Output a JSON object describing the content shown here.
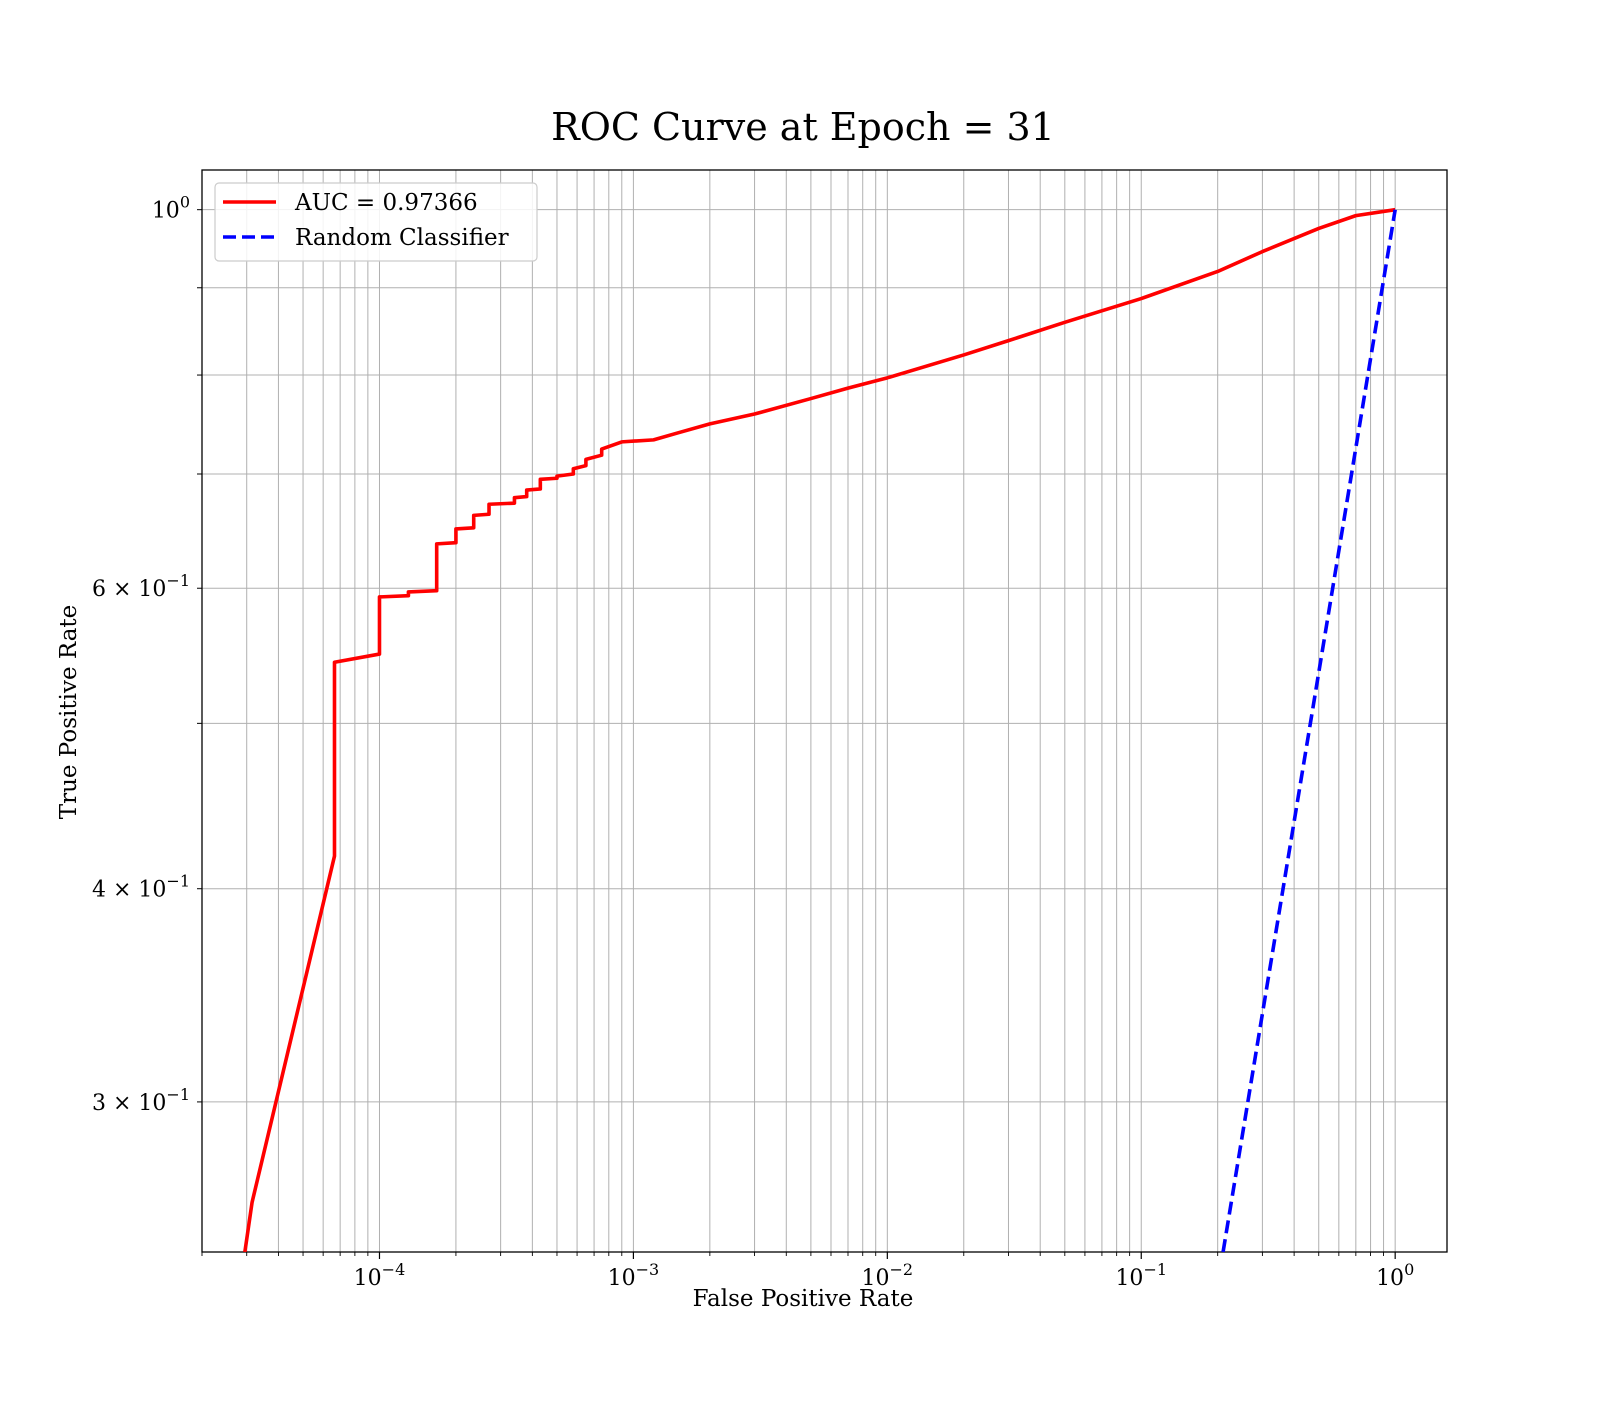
{
  "chart_data": {
    "type": "line",
    "title": "ROC Curve at Epoch = 31",
    "xlabel": "False Positive Rate",
    "ylabel": "True Positive Rate",
    "xscale": "log",
    "yscale": "log",
    "xlim": [
      2e-05,
      1.6
    ],
    "ylim": [
      0.245,
      1.055
    ],
    "grid": true,
    "legend_position": "upper-left",
    "x_ticks": [
      {
        "value": 0.0001,
        "base": "10",
        "exp": "−4"
      },
      {
        "value": 0.001,
        "base": "10",
        "exp": "−3"
      },
      {
        "value": 0.01,
        "base": "10",
        "exp": "−2"
      },
      {
        "value": 0.1,
        "base": "10",
        "exp": "−1"
      },
      {
        "value": 1,
        "base": "10",
        "exp": "0"
      }
    ],
    "y_ticks": [
      {
        "value": 1.0,
        "base": "10",
        "exp": "0"
      },
      {
        "value": 0.6,
        "base": "6 × 10",
        "exp": "−1"
      },
      {
        "value": 0.4,
        "base": "4 × 10",
        "exp": "−1"
      },
      {
        "value": 0.3,
        "base": "3 × 10",
        "exp": "−1"
      }
    ],
    "series": [
      {
        "name": "AUC = 0.97366",
        "color": "#ff0000",
        "style": "solid",
        "points": [
          [
            2.95e-05,
            0.245
          ],
          [
            3.15e-05,
            0.262
          ],
          [
            6.65e-05,
            0.418
          ],
          [
            6.65e-05,
            0.543
          ],
          [
            0.0001,
            0.549
          ],
          [
            0.0001,
            0.593
          ],
          [
            0.00013,
            0.594
          ],
          [
            0.00013,
            0.597
          ],
          [
            0.000168,
            0.598
          ],
          [
            0.000168,
            0.637
          ],
          [
            0.0002,
            0.638
          ],
          [
            0.0002,
            0.65
          ],
          [
            0.000235,
            0.651
          ],
          [
            0.000235,
            0.662
          ],
          [
            0.00027,
            0.663
          ],
          [
            0.00027,
            0.672
          ],
          [
            0.00034,
            0.673
          ],
          [
            0.00034,
            0.678
          ],
          [
            0.00038,
            0.679
          ],
          [
            0.00038,
            0.685
          ],
          [
            0.00043,
            0.686
          ],
          [
            0.00043,
            0.695
          ],
          [
            0.0005,
            0.696
          ],
          [
            0.0005,
            0.698
          ],
          [
            0.00058,
            0.7
          ],
          [
            0.00058,
            0.705
          ],
          [
            0.00065,
            0.708
          ],
          [
            0.00065,
            0.714
          ],
          [
            0.00075,
            0.718
          ],
          [
            0.00075,
            0.724
          ],
          [
            0.0009,
            0.731
          ],
          [
            0.0012,
            0.733
          ],
          [
            0.0015,
            0.74
          ],
          [
            0.002,
            0.749
          ],
          [
            0.003,
            0.759
          ],
          [
            0.005,
            0.775
          ],
          [
            0.007,
            0.786
          ],
          [
            0.01,
            0.797
          ],
          [
            0.02,
            0.822
          ],
          [
            0.03,
            0.838
          ],
          [
            0.05,
            0.859
          ],
          [
            0.1,
            0.887
          ],
          [
            0.2,
            0.92
          ],
          [
            0.3,
            0.945
          ],
          [
            0.5,
            0.975
          ],
          [
            0.7,
            0.992
          ],
          [
            1.0,
            1.0
          ]
        ]
      },
      {
        "name": "Random Classifier",
        "color": "#0000ff",
        "style": "dashed",
        "points": [
          [
            0.21,
            0.245
          ],
          [
            1.0,
            1.0
          ]
        ]
      }
    ]
  }
}
